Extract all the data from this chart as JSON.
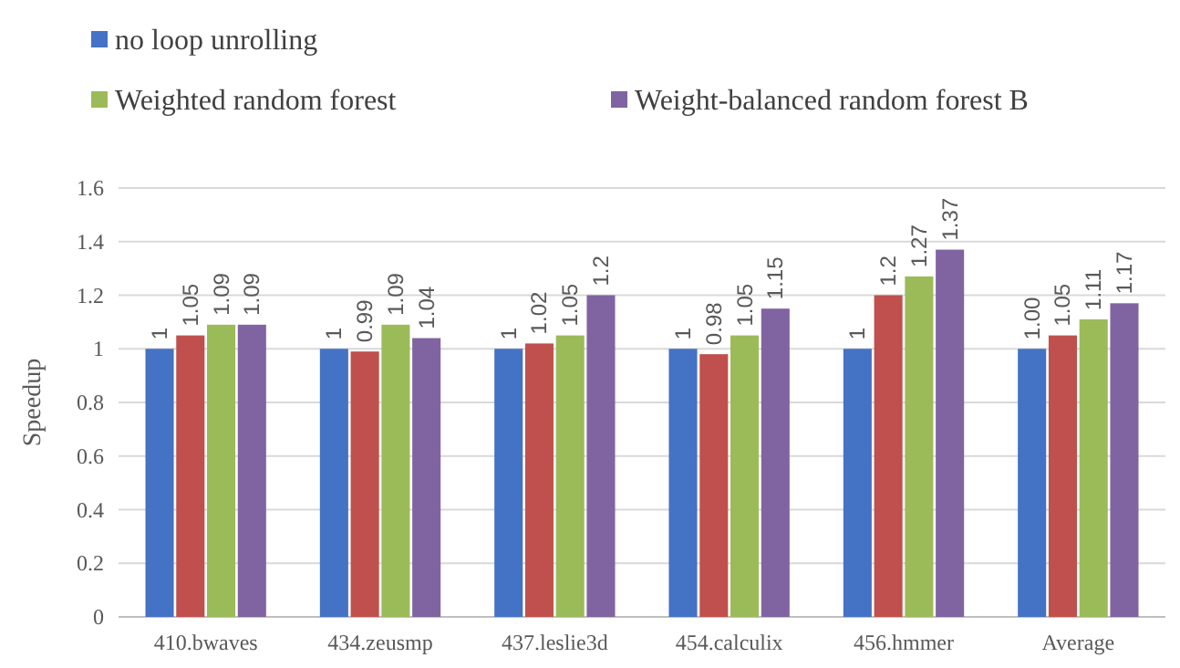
{
  "chart_data": {
    "type": "bar",
    "ylabel": "Speedup",
    "categories": [
      "410.bwaves",
      "434.zeusmp",
      "437.leslie3d",
      "454.calculix",
      "456.hmmer",
      "Average"
    ],
    "series": [
      {
        "name": "no loop unrolling",
        "color": "#4472c4",
        "values": [
          1,
          1,
          1,
          1,
          1,
          1.0
        ],
        "value_labels": [
          "1",
          "1",
          "1",
          "1",
          "1",
          "1.00"
        ]
      },
      {
        "color": "#c0504d",
        "values": [
          1.05,
          0.99,
          1.02,
          0.98,
          1.2,
          1.05
        ],
        "value_labels": [
          "1.05",
          "0.99",
          "1.02",
          "0.98",
          "1.2",
          "1.05"
        ]
      },
      {
        "name": "Weighted random forest",
        "color": "#9bbb59",
        "values": [
          1.09,
          1.09,
          1.05,
          1.05,
          1.27,
          1.11
        ],
        "value_labels": [
          "1.09",
          "1.09",
          "1.05",
          "1.05",
          "1.27",
          "1.11"
        ]
      },
      {
        "name": "Weight-balanced random forest B",
        "color": "#8064a2",
        "values": [
          1.09,
          1.04,
          1.2,
          1.15,
          1.37,
          1.17
        ],
        "value_labels": [
          "1.09",
          "1.04",
          "1.2",
          "1.15",
          "1.37",
          "1.17"
        ]
      }
    ],
    "ylim": [
      0,
      1.6
    ],
    "yticks": [
      0,
      0.2,
      0.4,
      0.6,
      0.8,
      1,
      1.2,
      1.4,
      1.6
    ],
    "grid": "y",
    "legend": "top"
  }
}
